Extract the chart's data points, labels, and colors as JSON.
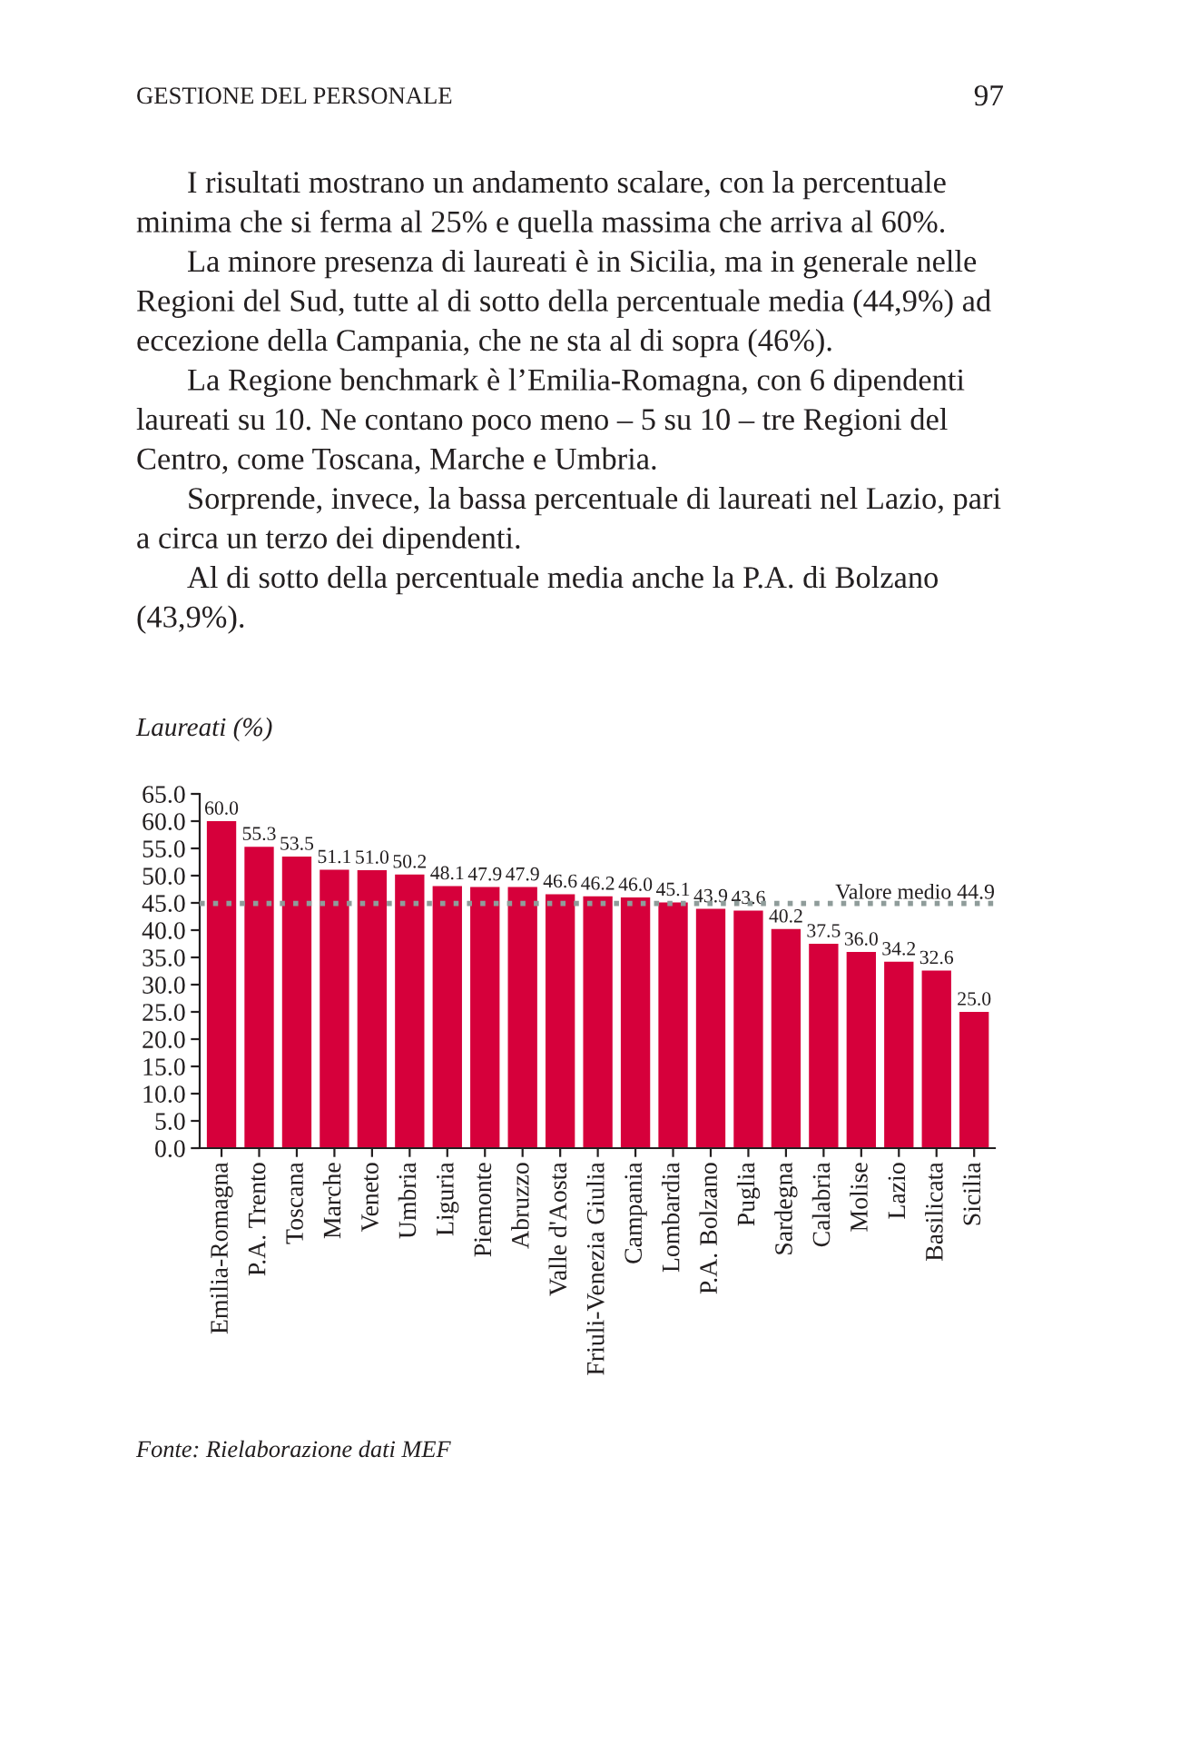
{
  "chart_data": {
    "type": "bar",
    "title": "Laureati (%)",
    "categories": [
      "Emilia-Romagna",
      "P.A. Trento",
      "Toscana",
      "Marche",
      "Veneto",
      "Umbria",
      "Liguria",
      "Piemonte",
      "Abruzzo",
      "Valle d'Aosta",
      "Friuli-Venezia Giulia",
      "Campania",
      "Lombardia",
      "P.A. Bolzano",
      "Puglia",
      "Sardegna",
      "Calabria",
      "Molise",
      "Lazio",
      "Basilicata",
      "Sicilia"
    ],
    "values": [
      60.0,
      55.3,
      53.5,
      51.1,
      51.0,
      50.2,
      48.1,
      47.9,
      47.9,
      46.6,
      46.2,
      46.0,
      45.1,
      43.9,
      43.6,
      40.2,
      37.5,
      36.0,
      34.2,
      32.6,
      25.0
    ],
    "value_labels": [
      "60.0",
      "55.3",
      "53.5",
      "51.1",
      "51.0",
      "50.2",
      "48.1",
      "47.9",
      "47.9",
      "46.6",
      "46.2",
      "46.0",
      "45.1",
      "43.9",
      "43.6",
      "40.2",
      "37.5",
      "36.0",
      "34.2",
      "32.6",
      "25.0"
    ],
    "color": "#d6003b",
    "ylim": [
      0,
      65
    ],
    "yticks": [
      {
        "value": 0,
        "label": "0.0"
      },
      {
        "value": 5,
        "label": "5.0"
      },
      {
        "value": 10,
        "label": "10.0"
      },
      {
        "value": 15,
        "label": "15.0"
      },
      {
        "value": 20,
        "label": "20.0"
      },
      {
        "value": 25,
        "label": "25.0"
      },
      {
        "value": 30,
        "label": "30.0"
      },
      {
        "value": 35,
        "label": "35.0"
      },
      {
        "value": 40,
        "label": "40.0"
      },
      {
        "value": 45,
        "label": "45.0"
      },
      {
        "value": 50,
        "label": "50.0"
      },
      {
        "value": 55,
        "label": "55.0"
      },
      {
        "value": 60,
        "label": "60.0"
      },
      {
        "value": 65,
        "label": "65.0"
      }
    ],
    "ref_lines": [
      {
        "axis": "y",
        "value": 44.9,
        "label": "Valore medio 44.9",
        "color": "#8f9c9a",
        "line_style": "dotted"
      }
    ],
    "annotations": [
      "GESTIONE DEL PERSONALE",
      "97",
      "I risultati mostrano un andamento scalare, con la percentuale\nminima che si ferma al 25% e quella massima che arriva al 60%.",
      "La minore presenza di laureati è in Sicilia, ma in generale nelle\nRegioni del Sud, tutte al di sotto della percentuale media (44,9%) ad\neccezione della Campania, che ne sta al di sopra (46%).",
      "La Regione benchmark è l’Emilia-Romagna, con 6 dipendenti\nlaureati su 10. Ne contano poco meno – 5 su 10 – tre Regioni del\nCentro, come Toscana, Marche e Umbria.",
      "Sorprende, invece, la bassa percentuale di laureati nel Lazio, pari\na circa un terzo dei dipendenti.",
      "Al di sotto della percentuale media anche la P.A. di Bolzano\n(43,9%).",
      "Fonte: Rielaborazione dati MEF"
    ]
  }
}
